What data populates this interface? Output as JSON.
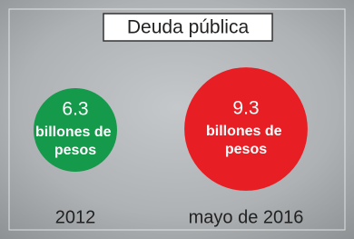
{
  "chart_data": {
    "type": "bubble",
    "title": "Deuda pública",
    "categories": [
      "2012",
      "mayo de 2016"
    ],
    "values": [
      6.3,
      9.3
    ],
    "unit": "billones de pesos",
    "colors": [
      "#15994a",
      "#e81e25"
    ]
  }
}
